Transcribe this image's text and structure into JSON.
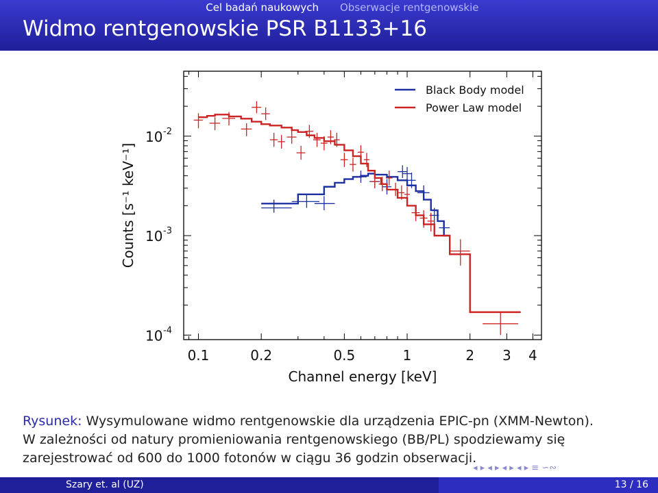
{
  "header": {
    "nav_left": "Cel badań naukowych",
    "nav_right": "Obserwacje rentgenowskie",
    "title": "Widmo rentgenowskie PSR B1133+16"
  },
  "chart_data": {
    "type": "line",
    "xscale": "log",
    "yscale": "log",
    "xlim": [
      0.085,
      4.4
    ],
    "ylim": [
      9e-05,
      0.045
    ],
    "xlabel": "Channel energy [keV]",
    "ylabel": "Counts [s⁻¹ keV⁻¹]",
    "x_ticks": [
      0.1,
      0.2,
      0.5,
      1,
      2,
      3,
      4
    ],
    "x_tick_labels": [
      "0.1",
      "0.2",
      "0.5",
      "1",
      "2",
      "3",
      "4"
    ],
    "y_ticks": [
      0.0001,
      0.001,
      0.01
    ],
    "y_tick_labels": [
      {
        "base": "10",
        "exp": "-4"
      },
      {
        "base": "10",
        "exp": "-3"
      },
      {
        "base": "10",
        "exp": "-2"
      }
    ],
    "legend_position": "top-right",
    "series": [
      {
        "name": "Black Body model",
        "color": "#1c2fa3",
        "model_steps": [
          [
            0.2,
            0.0021
          ],
          [
            0.3,
            0.0026
          ],
          [
            0.4,
            0.0031
          ],
          [
            0.45,
            0.0034
          ],
          [
            0.5,
            0.0037
          ],
          [
            0.55,
            0.0039
          ],
          [
            0.6,
            0.004
          ],
          [
            0.65,
            0.0042
          ],
          [
            0.7,
            0.0041
          ],
          [
            0.8,
            0.0039
          ],
          [
            0.9,
            0.0036
          ],
          [
            1.0,
            0.0032
          ],
          [
            1.1,
            0.0028
          ],
          [
            1.2,
            0.0023
          ],
          [
            1.3,
            0.0018
          ],
          [
            1.4,
            0.0014
          ],
          [
            1.5,
            0.001
          ]
        ],
        "model_end": 1.6,
        "points": [
          {
            "x": 0.23,
            "y": 0.0019,
            "xerr": [
              0.2,
              0.28
            ],
            "yerr": [
              0.0017,
              0.0023
            ]
          },
          {
            "x": 0.33,
            "y": 0.0022,
            "xerr": [
              0.28,
              0.38
            ],
            "yerr": [
              0.0019,
              0.0026
            ]
          },
          {
            "x": 0.4,
            "y": 0.0021,
            "xerr": [
              0.36,
              0.45
            ],
            "yerr": [
              0.0018,
              0.0025
            ]
          },
          {
            "x": 0.6,
            "y": 0.0039,
            "xerr": [
              0.56,
              0.64
            ],
            "yerr": [
              0.0034,
              0.0045
            ]
          },
          {
            "x": 0.7,
            "y": 0.0035,
            "xerr": [
              0.66,
              0.74
            ],
            "yerr": [
              0.003,
              0.0041
            ]
          },
          {
            "x": 0.8,
            "y": 0.0031,
            "xerr": [
              0.76,
              0.84
            ],
            "yerr": [
              0.0026,
              0.0037
            ]
          },
          {
            "x": 0.95,
            "y": 0.0044,
            "xerr": [
              0.9,
              1.0
            ],
            "yerr": [
              0.0038,
              0.0051
            ]
          },
          {
            "x": 1.0,
            "y": 0.0042,
            "xerr": [
              0.95,
              1.05
            ],
            "yerr": [
              0.0036,
              0.0049
            ]
          },
          {
            "x": 1.05,
            "y": 0.0036,
            "xerr": [
              1.0,
              1.1
            ],
            "yerr": [
              0.003,
              0.0043
            ]
          },
          {
            "x": 1.2,
            "y": 0.0027,
            "xerr": [
              1.12,
              1.28
            ],
            "yerr": [
              0.0023,
              0.0032
            ]
          },
          {
            "x": 1.35,
            "y": 0.0016,
            "xerr": [
              1.28,
              1.42
            ],
            "yerr": [
              0.0013,
              0.0019
            ]
          },
          {
            "x": 1.5,
            "y": 0.0012,
            "xerr": [
              1.42,
              1.6
            ],
            "yerr": [
              0.001,
              0.0014
            ]
          }
        ]
      },
      {
        "name": "Power Law model",
        "color": "#cc2222",
        "model_steps": [
          [
            0.1,
            0.0155
          ],
          [
            0.11,
            0.016
          ],
          [
            0.12,
            0.0165
          ],
          [
            0.14,
            0.0158
          ],
          [
            0.16,
            0.015
          ],
          [
            0.18,
            0.014
          ],
          [
            0.2,
            0.0132
          ],
          [
            0.22,
            0.0128
          ],
          [
            0.25,
            0.0122
          ],
          [
            0.28,
            0.0115
          ],
          [
            0.3,
            0.011
          ],
          [
            0.33,
            0.0102
          ],
          [
            0.36,
            0.0096
          ],
          [
            0.4,
            0.0089
          ],
          [
            0.45,
            0.0082
          ],
          [
            0.5,
            0.0072
          ],
          [
            0.55,
            0.0063
          ],
          [
            0.6,
            0.0053
          ],
          [
            0.65,
            0.0045
          ],
          [
            0.7,
            0.0038
          ],
          [
            0.75,
            0.0033
          ],
          [
            0.8,
            0.0029
          ],
          [
            0.9,
            0.0024
          ],
          [
            1.0,
            0.002
          ],
          [
            1.1,
            0.0016
          ],
          [
            1.2,
            0.0013
          ],
          [
            1.35,
            0.001
          ],
          [
            1.6,
            0.00065
          ],
          [
            2.0,
            0.00017
          ]
        ],
        "model_end": 3.5,
        "points": [
          {
            "x": 0.1,
            "y": 0.0145,
            "xerr": [
              0.095,
              0.105
            ],
            "yerr": [
              0.012,
              0.017
            ]
          },
          {
            "x": 0.12,
            "y": 0.0135,
            "xerr": [
              0.113,
              0.127
            ],
            "yerr": [
              0.0115,
              0.0155
            ]
          },
          {
            "x": 0.14,
            "y": 0.0151,
            "xerr": [
              0.13,
              0.15
            ],
            "yerr": [
              0.0128,
              0.0175
            ]
          },
          {
            "x": 0.17,
            "y": 0.0118,
            "xerr": [
              0.16,
              0.18
            ],
            "yerr": [
              0.01,
              0.0135
            ]
          },
          {
            "x": 0.19,
            "y": 0.0195,
            "xerr": [
              0.18,
              0.2
            ],
            "yerr": [
              0.017,
              0.0225
            ]
          },
          {
            "x": 0.21,
            "y": 0.0168,
            "xerr": [
              0.2,
              0.22
            ],
            "yerr": [
              0.0145,
              0.0195
            ]
          },
          {
            "x": 0.23,
            "y": 0.0092,
            "xerr": [
              0.22,
              0.24
            ],
            "yerr": [
              0.0078,
              0.0108
            ]
          },
          {
            "x": 0.25,
            "y": 0.0088,
            "xerr": [
              0.24,
              0.26
            ],
            "yerr": [
              0.0075,
              0.0103
            ]
          },
          {
            "x": 0.28,
            "y": 0.0098,
            "xerr": [
              0.265,
              0.295
            ],
            "yerr": [
              0.0084,
              0.0115
            ]
          },
          {
            "x": 0.31,
            "y": 0.0068,
            "xerr": [
              0.295,
              0.325
            ],
            "yerr": [
              0.0058,
              0.008
            ]
          },
          {
            "x": 0.34,
            "y": 0.0112,
            "xerr": [
              0.325,
              0.355
            ],
            "yerr": [
              0.0096,
              0.013
            ]
          },
          {
            "x": 0.37,
            "y": 0.0092,
            "xerr": [
              0.355,
              0.385
            ],
            "yerr": [
              0.0078,
              0.0108
            ]
          },
          {
            "x": 0.4,
            "y": 0.0085,
            "xerr": [
              0.385,
              0.415
            ],
            "yerr": [
              0.0072,
              0.01
            ]
          },
          {
            "x": 0.43,
            "y": 0.0098,
            "xerr": [
              0.415,
              0.445
            ],
            "yerr": [
              0.0083,
              0.0115
            ]
          },
          {
            "x": 0.46,
            "y": 0.0092,
            "xerr": [
              0.445,
              0.475
            ],
            "yerr": [
              0.0078,
              0.0108
            ]
          },
          {
            "x": 0.5,
            "y": 0.0058,
            "xerr": [
              0.48,
              0.52
            ],
            "yerr": [
              0.0049,
              0.0068
            ]
          },
          {
            "x": 0.55,
            "y": 0.0052,
            "xerr": [
              0.53,
              0.57
            ],
            "yerr": [
              0.0044,
              0.0061
            ]
          },
          {
            "x": 0.6,
            "y": 0.0069,
            "xerr": [
              0.58,
              0.62
            ],
            "yerr": [
              0.0058,
              0.0081
            ]
          },
          {
            "x": 0.64,
            "y": 0.0058,
            "xerr": [
              0.62,
              0.66
            ],
            "yerr": [
              0.0049,
              0.0068
            ]
          },
          {
            "x": 0.7,
            "y": 0.0035,
            "xerr": [
              0.67,
              0.73
            ],
            "yerr": [
              0.003,
              0.0041
            ]
          },
          {
            "x": 0.76,
            "y": 0.0033,
            "xerr": [
              0.73,
              0.79
            ],
            "yerr": [
              0.0028,
              0.0039
            ]
          },
          {
            "x": 0.82,
            "y": 0.0038,
            "xerr": [
              0.79,
              0.85
            ],
            "yerr": [
              0.0032,
              0.0045
            ]
          },
          {
            "x": 0.88,
            "y": 0.0029,
            "xerr": [
              0.85,
              0.91
            ],
            "yerr": [
              0.0025,
              0.0034
            ]
          },
          {
            "x": 0.94,
            "y": 0.0027,
            "xerr": [
              0.91,
              0.97
            ],
            "yerr": [
              0.0023,
              0.0032
            ]
          },
          {
            "x": 1.0,
            "y": 0.0026,
            "xerr": [
              0.97,
              1.03
            ],
            "yerr": [
              0.0022,
              0.0031
            ]
          },
          {
            "x": 1.1,
            "y": 0.0017,
            "xerr": [
              1.05,
              1.15
            ],
            "yerr": [
              0.0014,
              0.002
            ]
          },
          {
            "x": 1.2,
            "y": 0.0015,
            "xerr": [
              1.15,
              1.25
            ],
            "yerr": [
              0.0012,
              0.0018
            ]
          },
          {
            "x": 1.3,
            "y": 0.0014,
            "xerr": [
              1.25,
              1.35
            ],
            "yerr": [
              0.0011,
              0.0017
            ]
          },
          {
            "x": 1.8,
            "y": 0.0007,
            "xerr": [
              1.6,
              2.0
            ],
            "yerr": [
              0.0005,
              0.00092
            ]
          },
          {
            "x": 2.8,
            "y": 0.00013,
            "xerr": [
              2.3,
              3.4
            ],
            "yerr": [
              0.0001,
              0.00017
            ]
          }
        ]
      }
    ]
  },
  "caption": {
    "label": "Rysunek:",
    "text": " Wysymulowane widmo rentgenowskie dla urządzenia EPIC-pn (XMM-Newton).",
    "body": "W zależności od natury promieniowania rentgenowskiego (BB/PL) spodziewamy się zarejestrować od 600 do 1000 fotonów w ciągu 36 godzin obserwacji."
  },
  "nav_symbols": "◂ ▸ ◂ ▸ ◂ ▸ ◂ ▸ ≡ ∽∾",
  "footer": {
    "author": "Szary et. al (UZ)",
    "page": "13 / 16"
  }
}
